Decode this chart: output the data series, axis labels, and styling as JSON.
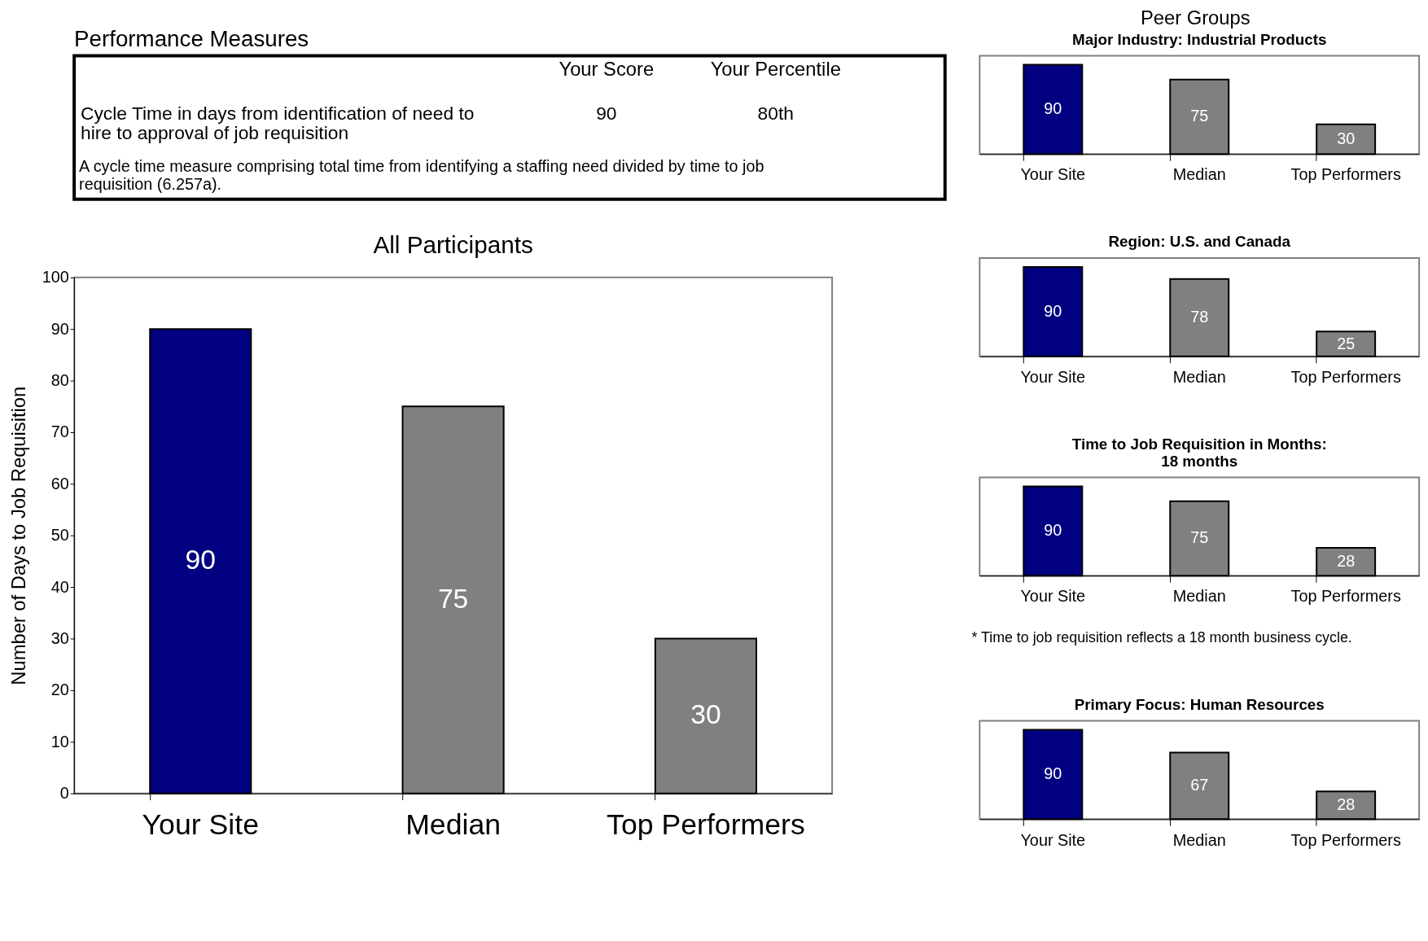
{
  "chart_data": [
    {
      "type": "other",
      "title": "Performance Measures",
      "annotations": [
        "Your Score",
        "Your Percentile",
        "Cycle Time in days from identification of need to\nhire to approval of job requisition",
        "90",
        "80th",
        "A cycle time measure comprising total time from identifying a staffing need divided by time to job\nrequisition (6.257a)."
      ]
    },
    {
      "type": "bar",
      "title": "All Participants",
      "ylabel": "Number of Days to Job Requisition",
      "categories": [
        "Your Site",
        "Median",
        "Top Performers"
      ],
      "values": [
        90,
        75,
        30
      ],
      "colors": [
        "#000080",
        "#808080",
        "#808080"
      ],
      "ylim": [
        0,
        100
      ],
      "yticks": [
        0,
        10,
        20,
        30,
        40,
        50,
        60,
        70,
        80,
        90,
        100
      ],
      "data_labels": true
    },
    {
      "type": "bar",
      "title": "Major Industry: Industrial Products",
      "annotations": [
        "Peer Groups"
      ],
      "categories": [
        "Your Site",
        "Median",
        "Top Performers"
      ],
      "values": [
        90,
        75,
        30
      ],
      "colors": [
        "#000080",
        "#808080",
        "#808080"
      ],
      "data_labels": true
    },
    {
      "type": "bar",
      "title": "Region: U.S. and Canada",
      "categories": [
        "Your Site",
        "Median",
        "Top Performers"
      ],
      "values": [
        90,
        78,
        25
      ],
      "colors": [
        "#000080",
        "#808080",
        "#808080"
      ],
      "data_labels": true
    },
    {
      "type": "bar",
      "title": "Time to Job Requisition in Months:\n18 months",
      "annotations": [
        "* Time to job requisition reflects a 18 month business cycle."
      ],
      "categories": [
        "Your Site",
        "Median",
        "Top Performers"
      ],
      "values": [
        90,
        75,
        28
      ],
      "colors": [
        "#000080",
        "#808080",
        "#808080"
      ],
      "data_labels": true
    },
    {
      "type": "bar",
      "title": "Primary Focus: Human Resources",
      "categories": [
        "Your Site",
        "Median",
        "Top Performers"
      ],
      "values": [
        90,
        67,
        28
      ],
      "colors": [
        "#000080",
        "#808080",
        "#808080"
      ],
      "data_labels": true
    }
  ]
}
